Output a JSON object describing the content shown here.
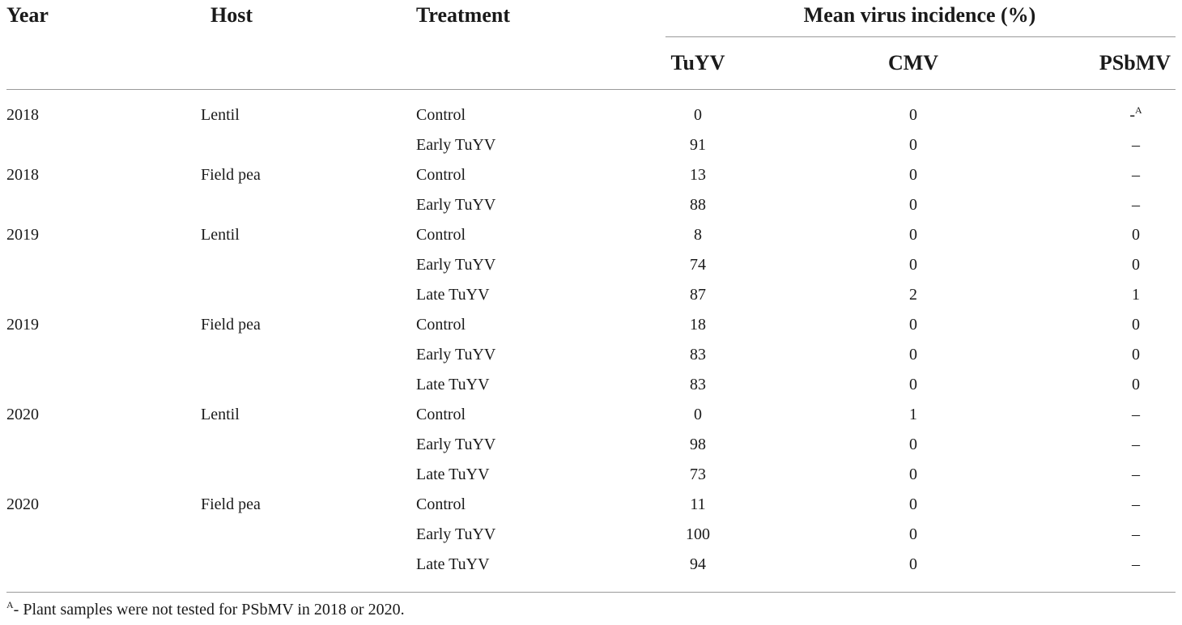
{
  "header": {
    "year": "Year",
    "host": "Host",
    "treatment": "Treatment",
    "group": "Mean virus incidence (%)",
    "tuyv": "TuYV",
    "cmv": "CMV",
    "psbmv": "PSbMV"
  },
  "rows": [
    {
      "year": "2018",
      "host": "Lentil",
      "treatment": "Control",
      "tuyv": "0",
      "cmv": "0",
      "psbmv": "-",
      "psbmv_sup": "A"
    },
    {
      "year": "",
      "host": "",
      "treatment": "Early TuYV",
      "tuyv": "91",
      "cmv": "0",
      "psbmv": "–"
    },
    {
      "year": "2018",
      "host": "Field pea",
      "treatment": "Control",
      "tuyv": "13",
      "cmv": "0",
      "psbmv": "–"
    },
    {
      "year": "",
      "host": "",
      "treatment": "Early TuYV",
      "tuyv": "88",
      "cmv": "0",
      "psbmv": "–"
    },
    {
      "year": "2019",
      "host": "Lentil",
      "treatment": "Control",
      "tuyv": "8",
      "cmv": "0",
      "psbmv": "0"
    },
    {
      "year": "",
      "host": "",
      "treatment": "Early TuYV",
      "tuyv": "74",
      "cmv": "0",
      "psbmv": "0"
    },
    {
      "year": "",
      "host": "",
      "treatment": "Late TuYV",
      "tuyv": "87",
      "cmv": "2",
      "psbmv": "1"
    },
    {
      "year": "2019",
      "host": "Field pea",
      "treatment": "Control",
      "tuyv": "18",
      "cmv": "0",
      "psbmv": "0"
    },
    {
      "year": "",
      "host": "",
      "treatment": "Early TuYV",
      "tuyv": "83",
      "cmv": "0",
      "psbmv": "0"
    },
    {
      "year": "",
      "host": "",
      "treatment": "Late TuYV",
      "tuyv": "83",
      "cmv": "0",
      "psbmv": "0"
    },
    {
      "year": "2020",
      "host": "Lentil",
      "treatment": "Control",
      "tuyv": "0",
      "cmv": "1",
      "psbmv": "–"
    },
    {
      "year": "",
      "host": "",
      "treatment": "Early TuYV",
      "tuyv": "98",
      "cmv": "0",
      "psbmv": "–"
    },
    {
      "year": "",
      "host": "",
      "treatment": "Late TuYV",
      "tuyv": "73",
      "cmv": "0",
      "psbmv": "–"
    },
    {
      "year": "2020",
      "host": "Field pea",
      "treatment": "Control",
      "tuyv": "11",
      "cmv": "0",
      "psbmv": "–"
    },
    {
      "year": "",
      "host": "",
      "treatment": "Early TuYV",
      "tuyv": "100",
      "cmv": "0",
      "psbmv": "–"
    },
    {
      "year": "",
      "host": "",
      "treatment": "Late TuYV",
      "tuyv": "94",
      "cmv": "0",
      "psbmv": "–"
    }
  ],
  "footnote": {
    "marker": "A",
    "text": "- Plant samples were not tested for PSbMV in 2018 or 2020."
  }
}
